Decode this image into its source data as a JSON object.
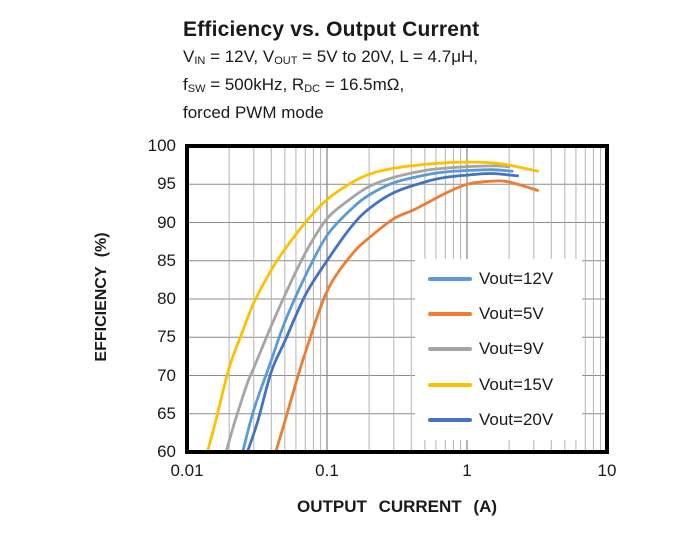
{
  "header": {
    "title": "Efficiency vs. Output Current",
    "subtitle_lines": [
      [
        {
          "t": "V"
        },
        {
          "t": "IN",
          "sub": true
        },
        {
          "t": " = 12V, V"
        },
        {
          "t": "OUT",
          "sub": true
        },
        {
          "t": " = 5V to 20V, L = 4.7μH,"
        }
      ],
      [
        {
          "t": "f"
        },
        {
          "t": "SW",
          "sub": true
        },
        {
          "t": " = 500kHz, R"
        },
        {
          "t": "DC",
          "sub": true
        },
        {
          "t": " = 16.5mΩ,"
        }
      ],
      [
        {
          "t": "forced PWM mode"
        }
      ]
    ]
  },
  "chart_data": {
    "type": "line",
    "title": "Efficiency vs. Output Current",
    "xlabel": "OUTPUT CURRENT (A)",
    "ylabel": "EFFICIENCY (%)",
    "x_scale": "log",
    "xlim": [
      0.01,
      10
    ],
    "ylim": [
      60,
      100
    ],
    "x_ticks": [
      "0.01",
      "0.1",
      "1",
      "10"
    ],
    "y_ticks": [
      100,
      95,
      90,
      85,
      80,
      75,
      70,
      65,
      60
    ],
    "grid": true,
    "legend_position": "inside-right",
    "series": [
      {
        "name": "Vout=12V",
        "color": "#5B9BD5",
        "points": [
          [
            0.025,
            60
          ],
          [
            0.03,
            65.5
          ],
          [
            0.04,
            72
          ],
          [
            0.05,
            77
          ],
          [
            0.07,
            83
          ],
          [
            0.1,
            88.3
          ],
          [
            0.15,
            91.8
          ],
          [
            0.2,
            93.6
          ],
          [
            0.3,
            95.2
          ],
          [
            0.5,
            96.2
          ],
          [
            0.7,
            96.6
          ],
          [
            1,
            96.8
          ],
          [
            1.5,
            96.9
          ],
          [
            2.1,
            96.7
          ]
        ]
      },
      {
        "name": "Vout=5V",
        "color": "#ED7D31",
        "points": [
          [
            0.043,
            60
          ],
          [
            0.05,
            64
          ],
          [
            0.06,
            69
          ],
          [
            0.07,
            73
          ],
          [
            0.1,
            81
          ],
          [
            0.15,
            85.8
          ],
          [
            0.2,
            88
          ],
          [
            0.3,
            90.5
          ],
          [
            0.4,
            91.5
          ],
          [
            0.5,
            92.4
          ],
          [
            0.7,
            93.8
          ],
          [
            1,
            95
          ],
          [
            1.5,
            95.4
          ],
          [
            2,
            95.3
          ],
          [
            3.2,
            94.2
          ]
        ]
      },
      {
        "name": "Vout=9V",
        "color": "#A5A5A5",
        "points": [
          [
            0.019,
            60
          ],
          [
            0.022,
            64
          ],
          [
            0.027,
            69
          ],
          [
            0.03,
            71
          ],
          [
            0.04,
            76.5
          ],
          [
            0.05,
            80.5
          ],
          [
            0.07,
            86
          ],
          [
            0.1,
            90.5
          ],
          [
            0.15,
            93.2
          ],
          [
            0.2,
            94.7
          ],
          [
            0.3,
            95.9
          ],
          [
            0.5,
            96.8
          ],
          [
            0.7,
            97.1
          ],
          [
            1,
            97.3
          ],
          [
            1.5,
            97.4
          ],
          [
            2,
            97.3
          ]
        ]
      },
      {
        "name": "Vout=15V",
        "color": "#FFC000",
        "points": [
          [
            0.014,
            60
          ],
          [
            0.016,
            64
          ],
          [
            0.02,
            71
          ],
          [
            0.025,
            75.8
          ],
          [
            0.03,
            79.5
          ],
          [
            0.04,
            83.8
          ],
          [
            0.05,
            86.5
          ],
          [
            0.07,
            90
          ],
          [
            0.1,
            93
          ],
          [
            0.15,
            95.2
          ],
          [
            0.2,
            96.3
          ],
          [
            0.3,
            97.1
          ],
          [
            0.5,
            97.6
          ],
          [
            0.7,
            97.8
          ],
          [
            1,
            97.9
          ],
          [
            1.5,
            97.8
          ],
          [
            2,
            97.5
          ],
          [
            3.2,
            96.7
          ]
        ]
      },
      {
        "name": "Vout=20V",
        "color": "#4472C4",
        "points": [
          [
            0.027,
            60
          ],
          [
            0.032,
            64
          ],
          [
            0.04,
            70.5
          ],
          [
            0.05,
            74.5
          ],
          [
            0.07,
            80.5
          ],
          [
            0.1,
            85
          ],
          [
            0.15,
            89.5
          ],
          [
            0.2,
            91.8
          ],
          [
            0.3,
            93.9
          ],
          [
            0.5,
            95.3
          ],
          [
            0.7,
            95.9
          ],
          [
            1,
            96.2
          ],
          [
            1.5,
            96.4
          ],
          [
            2.3,
            96.1
          ]
        ]
      }
    ]
  },
  "colors": {
    "plot_border": "#000000",
    "grid_minor": "#b3b3b3",
    "grid_major": "#8c8c8c",
    "background": "#ffffff",
    "text": "#1a1a1a"
  }
}
